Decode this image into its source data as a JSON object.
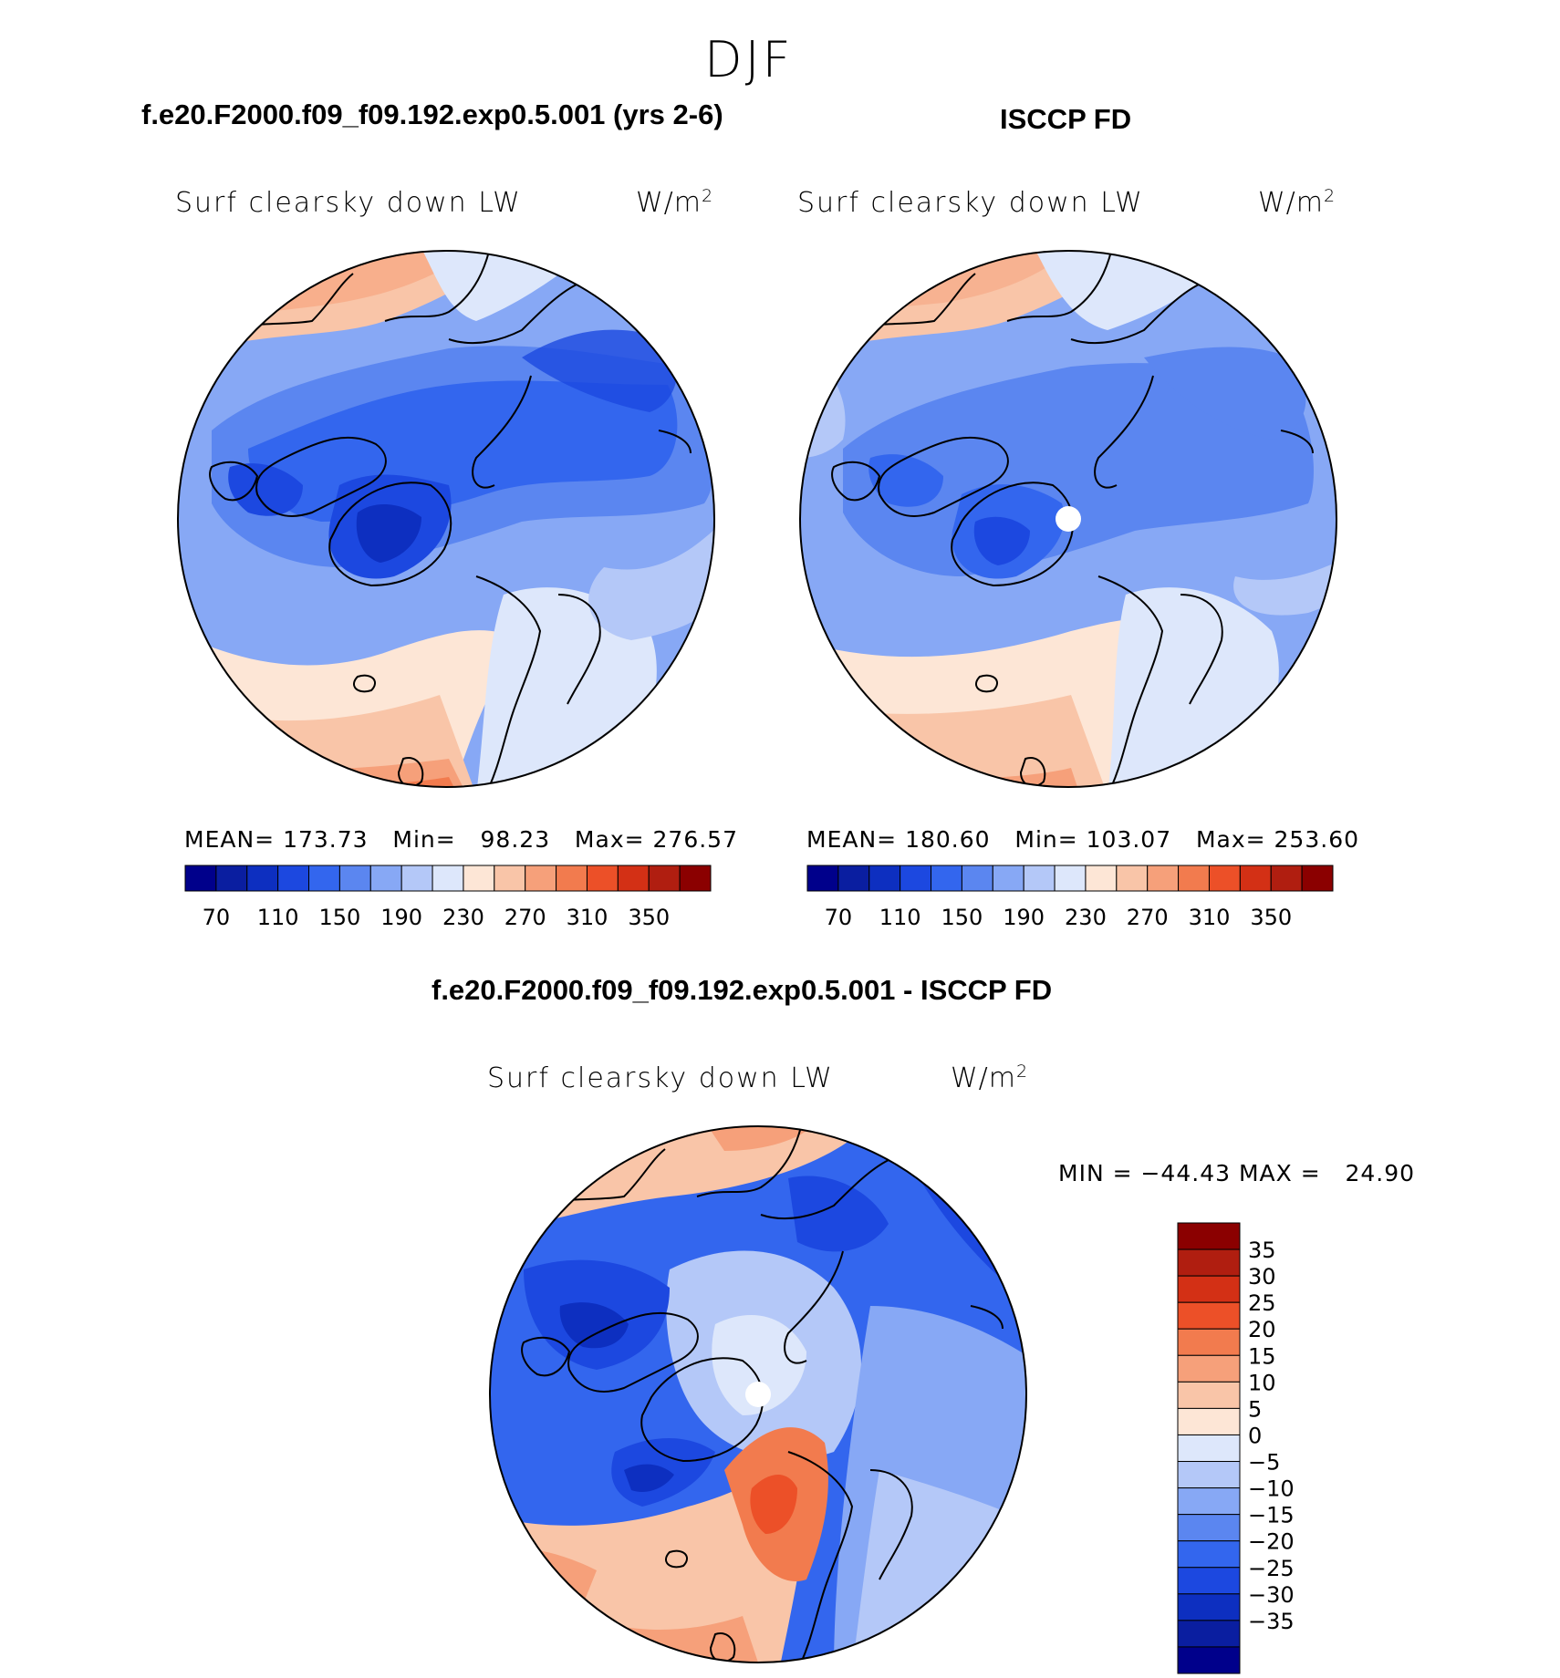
{
  "season": "DJF",
  "colors": {
    "land_outline": "#000000",
    "missing_data": "#ffffff",
    "abs_palette": [
      "#00008b",
      "#0a1ea0",
      "#0d2fc0",
      "#1c48e0",
      "#3366ee",
      "#5b86f0",
      "#87a8f5",
      "#b4c8f8",
      "#dde7fb",
      "#fde6d6",
      "#f9c5a8",
      "#f6a07a",
      "#f27b4e",
      "#ec5028",
      "#d33015",
      "#b01e10",
      "#8b0000"
    ],
    "diff_palette": [
      "#00008b",
      "#0a1ea0",
      "#0d2fc0",
      "#1c48e0",
      "#3366ee",
      "#5b86f0",
      "#87a8f5",
      "#b4c8f8",
      "#dde7fb",
      "#fde6d6",
      "#f9c5a8",
      "#f6a07a",
      "#f27b4e",
      "#ec5028",
      "#d33015",
      "#b01e10",
      "#8b0000"
    ]
  },
  "panels": {
    "model": {
      "title": "f.e20.F2000.f09_f09.192.exp0.5.001 (yrs 2-6)",
      "variable": "Surf clearsky down LW",
      "units_base": "W/m",
      "units_exp": "2",
      "stats": "MEAN= 173.73   Min=   98.23   Max= 276.57",
      "colorbar_ticks": [
        "70",
        "110",
        "150",
        "190",
        "230",
        "270",
        "310",
        "350"
      ]
    },
    "obs": {
      "title": "ISCCP FD",
      "variable": "Surf clearsky down LW",
      "units_base": "W/m",
      "units_exp": "2",
      "stats": "MEAN= 180.60   Min= 103.07   Max= 253.60",
      "colorbar_ticks": [
        "70",
        "110",
        "150",
        "190",
        "230",
        "270",
        "310",
        "350"
      ]
    },
    "diff": {
      "title": "f.e20.F2000.f09_f09.192.exp0.5.001 - ISCCP FD",
      "variable": "Surf clearsky down LW",
      "units_base": "W/m",
      "units_exp": "2",
      "stats": "MIN = −44.43 MAX =   24.90",
      "colorbar_ticks": [
        "35",
        "30",
        "25",
        "20",
        "15",
        "10",
        "5",
        "0",
        "−5",
        "−10",
        "−15",
        "−20",
        "−25",
        "−30",
        "−35"
      ]
    }
  }
}
